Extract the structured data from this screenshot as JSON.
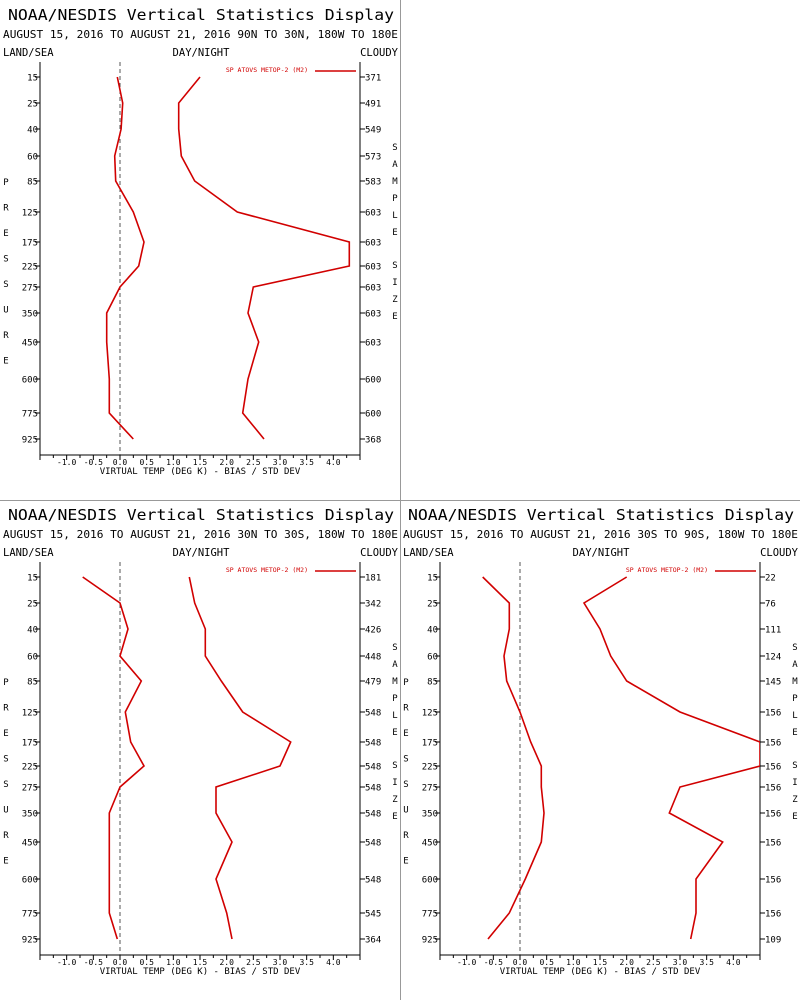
{
  "colors": {
    "line": "#d10000",
    "axis": "#000000",
    "zero": "#555555"
  },
  "labels": {
    "title": "NOAA/NESDIS Vertical Statistics Display",
    "land_sea": "LAND/SEA",
    "day_night": "DAY/NIGHT",
    "cloudy": "CLOUDY",
    "pressure": "PRESSURE",
    "sample_size": "SAMPLE SIZE",
    "xlabel": "VIRTUAL TEMP (DEG K) - BIAS / STD DEV",
    "legend": "SP ATOVS METOP-2 (M2)"
  },
  "chart_data": [
    {
      "type": "line",
      "subtitle": "AUGUST 15, 2016 TO AUGUST 21, 2016  90N TO 30N, 180W TO 180E",
      "xlim": [
        -1.5,
        4.5
      ],
      "xticks": [
        "-1.0",
        "-0.5",
        "0.0",
        "0.5",
        "1.0",
        "1.5",
        "2.0",
        "2.5",
        "3.0",
        "3.5",
        "4.0"
      ],
      "pressure": [
        "15",
        "25",
        "40",
        "60",
        "85",
        "125",
        "175",
        "225",
        "275",
        "350",
        "450",
        "600",
        "775",
        "925"
      ],
      "sample_size": [
        "371",
        "491",
        "549",
        "573",
        "583",
        "603",
        "603",
        "603",
        "603",
        "603",
        "603",
        "600",
        "600",
        "368"
      ],
      "series": [
        {
          "role": "bias",
          "values": [
            -0.05,
            0.05,
            0.02,
            -0.1,
            -0.08,
            0.25,
            0.45,
            0.35,
            0.0,
            -0.25,
            -0.25,
            -0.2,
            -0.2,
            0.25
          ]
        },
        {
          "role": "std_dev",
          "values": [
            1.5,
            1.1,
            1.1,
            1.15,
            1.4,
            2.2,
            4.3,
            4.3,
            2.5,
            2.4,
            2.6,
            2.4,
            2.3,
            2.7
          ]
        }
      ]
    },
    {
      "type": "line",
      "subtitle": "AUGUST 15, 2016 TO AUGUST 21, 2016  30N TO 30S, 180W TO 180E",
      "xlim": [
        -1.5,
        4.5
      ],
      "xticks": [
        "-1.0",
        "-0.5",
        "0.0",
        "0.5",
        "1.0",
        "1.5",
        "2.0",
        "2.5",
        "3.0",
        "3.5",
        "4.0"
      ],
      "pressure": [
        "15",
        "25",
        "40",
        "60",
        "85",
        "125",
        "175",
        "225",
        "275",
        "350",
        "450",
        "600",
        "775",
        "925"
      ],
      "sample_size": [
        "181",
        "342",
        "426",
        "448",
        "479",
        "548",
        "548",
        "548",
        "548",
        "548",
        "548",
        "548",
        "545",
        "364"
      ],
      "series": [
        {
          "role": "bias",
          "values": [
            -0.7,
            0.0,
            0.15,
            0.0,
            0.4,
            0.1,
            0.2,
            0.45,
            0.0,
            -0.2,
            -0.2,
            -0.2,
            -0.2,
            -0.05
          ]
        },
        {
          "role": "std_dev",
          "values": [
            1.3,
            1.4,
            1.6,
            1.6,
            1.9,
            2.3,
            3.2,
            3.0,
            1.8,
            1.8,
            2.1,
            1.8,
            2.0,
            2.1
          ]
        }
      ]
    },
    {
      "type": "line",
      "subtitle": "AUGUST 15, 2016 TO AUGUST 21, 2016  30S TO 90S, 180W TO 180E",
      "xlim": [
        -1.5,
        4.5
      ],
      "xticks": [
        "-1.0",
        "-0.5",
        "0.0",
        "0.5",
        "1.0",
        "1.5",
        "2.0",
        "2.5",
        "3.0",
        "3.5",
        "4.0"
      ],
      "pressure": [
        "15",
        "25",
        "40",
        "60",
        "85",
        "125",
        "175",
        "225",
        "275",
        "350",
        "450",
        "600",
        "775",
        "925"
      ],
      "sample_size": [
        "22",
        "76",
        "111",
        "124",
        "145",
        "156",
        "156",
        "156",
        "156",
        "156",
        "156",
        "156",
        "156",
        "109"
      ],
      "series": [
        {
          "role": "bias",
          "values": [
            -0.7,
            -0.2,
            -0.2,
            -0.3,
            -0.25,
            0.0,
            0.2,
            0.4,
            0.4,
            0.45,
            0.4,
            0.1,
            -0.2,
            -0.6
          ]
        },
        {
          "role": "std_dev",
          "values": [
            2.0,
            1.2,
            1.5,
            1.7,
            2.0,
            3.0,
            4.5,
            4.5,
            3.0,
            2.8,
            3.8,
            3.3,
            3.3,
            3.2
          ]
        }
      ]
    }
  ]
}
